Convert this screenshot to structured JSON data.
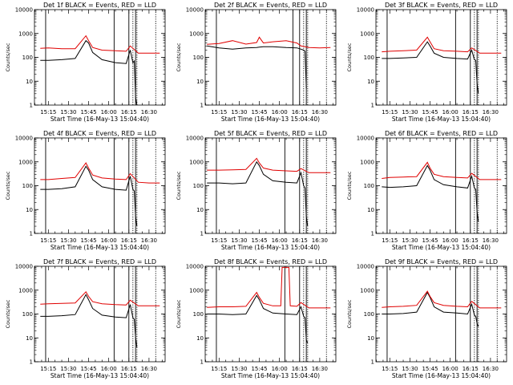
{
  "figure": {
    "colors": {
      "events": "#000000",
      "lld": "#e00000",
      "axis": "#000000",
      "marker": "#000000"
    }
  },
  "chart_data": [
    {
      "type": "line",
      "title": "Det 1f BLACK = Events, RED = LLD",
      "xlabel": "Start Time (16-May-13 15:04:40)",
      "ylabel": "Counts/sec",
      "yscale": "log",
      "ylim": [
        1,
        10000
      ],
      "yticks": [
        "1",
        "10",
        "100",
        "1000",
        "10000"
      ],
      "xticks": [
        "15:15",
        "15:30",
        "15:45",
        "16:00",
        "16:15",
        "16:30"
      ],
      "xlim": [
        "15:04:40",
        "16:42:00"
      ],
      "grid": false,
      "series": [
        {
          "name": "Events",
          "x": [
            "15:09",
            "15:15",
            "15:25",
            "15:35",
            "15:43",
            "15:45",
            "15:48",
            "15:55",
            "16:05",
            "16:13",
            "16:16",
            "16:18",
            "16:19",
            "16:20",
            "16:21"
          ],
          "values": [
            75,
            75,
            80,
            90,
            500,
            400,
            160,
            80,
            60,
            55,
            200,
            60,
            70,
            2,
            1
          ]
        },
        {
          "name": "LLD",
          "x": [
            "15:09",
            "15:15",
            "15:25",
            "15:35",
            "15:43",
            "15:45",
            "15:48",
            "15:55",
            "16:05",
            "16:13",
            "16:16",
            "16:22",
            "16:30",
            "16:38"
          ],
          "values": [
            240,
            250,
            230,
            230,
            800,
            500,
            260,
            200,
            190,
            180,
            300,
            150,
            150,
            150
          ]
        }
      ],
      "markers": {
        "solid": [
          "15:13",
          "16:04",
          "16:15",
          "16:20"
        ],
        "dotted": [
          "16:18",
          "16:21",
          "16:35"
        ]
      }
    },
    {
      "type": "line",
      "title": "Det 2f BLACK = Events, RED = LLD",
      "xlabel": "Start Time (16-May-13 15:04:40)",
      "ylabel": "Counts/sec",
      "yscale": "log",
      "ylim": [
        1,
        10000
      ],
      "yticks": [
        "1",
        "10",
        "100",
        "1000",
        "10000"
      ],
      "xticks": [
        "15:15",
        "15:30",
        "15:45",
        "16:00",
        "16:15",
        "16:30"
      ],
      "xlim": [
        "15:04:40",
        "16:42:00"
      ],
      "grid": false,
      "series": [
        {
          "name": "Events",
          "x": [
            "15:06",
            "15:15",
            "15:25",
            "15:35",
            "15:43",
            "15:45",
            "15:48",
            "15:55",
            "16:05",
            "16:13",
            "16:16",
            "16:18",
            "16:19",
            "16:20"
          ],
          "values": [
            300,
            250,
            220,
            250,
            260,
            270,
            280,
            280,
            260,
            250,
            220,
            200,
            180,
            5
          ]
        },
        {
          "name": "LLD",
          "x": [
            "15:06",
            "15:15",
            "15:25",
            "15:35",
            "15:43",
            "15:45",
            "15:48",
            "15:55",
            "16:05",
            "16:13",
            "16:16",
            "16:22",
            "16:30",
            "16:38"
          ],
          "values": [
            350,
            380,
            500,
            360,
            420,
            700,
            400,
            450,
            500,
            400,
            300,
            260,
            250,
            260
          ]
        }
      ],
      "markers": {
        "solid": [
          "15:13",
          "16:10",
          "16:15",
          "16:20"
        ],
        "dotted": [
          "16:18",
          "16:21",
          "16:35"
        ]
      }
    },
    {
      "type": "line",
      "title": "Det 3f BLACK = Events, RED = LLD",
      "xlabel": "Start Time (16-May-13 15:04:40)",
      "ylabel": "Counts/sec",
      "yscale": "log",
      "ylim": [
        1,
        10000
      ],
      "yticks": [
        "1",
        "10",
        "100",
        "1000",
        "10000"
      ],
      "xticks": [
        "15:15",
        "15:30",
        "15:45",
        "16:00",
        "16:15",
        "16:30"
      ],
      "xlim": [
        "15:04:40",
        "16:42:00"
      ],
      "grid": false,
      "series": [
        {
          "name": "Events",
          "x": [
            "15:09",
            "15:15",
            "15:25",
            "15:35",
            "15:43",
            "15:45",
            "15:48",
            "15:55",
            "16:05",
            "16:13",
            "16:16",
            "16:18",
            "16:19",
            "16:20",
            "16:21"
          ],
          "values": [
            90,
            90,
            95,
            100,
            450,
            300,
            150,
            100,
            90,
            85,
            200,
            80,
            75,
            8,
            3
          ]
        },
        {
          "name": "LLD",
          "x": [
            "15:09",
            "15:15",
            "15:25",
            "15:35",
            "15:43",
            "15:45",
            "15:48",
            "15:55",
            "16:05",
            "16:13",
            "16:16",
            "16:22",
            "16:30",
            "16:38"
          ],
          "values": [
            170,
            180,
            190,
            200,
            700,
            450,
            230,
            190,
            180,
            170,
            250,
            150,
            150,
            150
          ]
        }
      ],
      "markers": {
        "solid": [
          "15:13",
          "16:04",
          "16:15",
          "16:20"
        ],
        "dotted": [
          "16:18",
          "16:21",
          "16:35"
        ]
      }
    },
    {
      "type": "line",
      "title": "Det 4f BLACK = Events, RED = LLD",
      "xlabel": "Start Time (16-May-13 15:04:40)",
      "ylabel": "Counts/sec",
      "yscale": "log",
      "ylim": [
        1,
        10000
      ],
      "yticks": [
        "1",
        "10",
        "100",
        "1000",
        "10000"
      ],
      "xticks": [
        "15:15",
        "15:30",
        "15:45",
        "16:00",
        "16:15",
        "16:30"
      ],
      "xlim": [
        "15:04:40",
        "16:42:00"
      ],
      "grid": false,
      "series": [
        {
          "name": "Events",
          "x": [
            "15:09",
            "15:15",
            "15:25",
            "15:35",
            "15:43",
            "15:45",
            "15:48",
            "15:55",
            "16:05",
            "16:13",
            "16:16",
            "16:18",
            "16:19",
            "16:20",
            "16:21"
          ],
          "values": [
            70,
            70,
            75,
            90,
            650,
            450,
            180,
            90,
            70,
            65,
            250,
            70,
            60,
            5,
            2
          ]
        },
        {
          "name": "LLD",
          "x": [
            "15:09",
            "15:15",
            "15:25",
            "15:35",
            "15:43",
            "15:45",
            "15:48",
            "15:55",
            "16:05",
            "16:13",
            "16:16",
            "16:22",
            "16:30",
            "16:38"
          ],
          "values": [
            180,
            180,
            200,
            220,
            900,
            550,
            280,
            210,
            190,
            180,
            320,
            140,
            130,
            130
          ]
        }
      ],
      "markers": {
        "solid": [
          "15:13",
          "16:04",
          "16:15",
          "16:20"
        ],
        "dotted": [
          "16:18",
          "16:21",
          "16:35"
        ]
      }
    },
    {
      "type": "line",
      "title": "Det 5f BLACK = Events, RED = LLD",
      "xlabel": "Start Time (16-May-13 15:04:40)",
      "ylabel": "Counts/sec",
      "yscale": "log",
      "ylim": [
        1,
        10000
      ],
      "yticks": [
        "1",
        "10",
        "100",
        "1000",
        "10000"
      ],
      "xticks": [
        "15:15",
        "15:30",
        "15:45",
        "16:00",
        "16:15",
        "16:30"
      ],
      "xlim": [
        "15:04:40",
        "16:42:00"
      ],
      "grid": false,
      "series": [
        {
          "name": "Events",
          "x": [
            "15:06",
            "15:15",
            "15:25",
            "15:35",
            "15:43",
            "15:45",
            "15:48",
            "15:55",
            "16:05",
            "16:13",
            "16:16",
            "16:18",
            "16:19",
            "16:20",
            "16:21"
          ],
          "values": [
            130,
            130,
            120,
            130,
            1000,
            700,
            300,
            160,
            140,
            130,
            350,
            100,
            80,
            5,
            2
          ]
        },
        {
          "name": "LLD",
          "x": [
            "15:06",
            "15:15",
            "15:25",
            "15:35",
            "15:43",
            "15:45",
            "15:48",
            "15:55",
            "16:05",
            "16:13",
            "16:16",
            "16:22",
            "16:30",
            "16:38"
          ],
          "values": [
            450,
            450,
            460,
            480,
            1400,
            900,
            550,
            450,
            420,
            400,
            520,
            350,
            350,
            350
          ]
        }
      ],
      "markers": {
        "solid": [
          "15:13",
          "16:04",
          "16:15",
          "16:20"
        ],
        "dotted": [
          "16:18",
          "16:21",
          "16:35"
        ]
      }
    },
    {
      "type": "line",
      "title": "Det 6f BLACK = Events, RED = LLD",
      "xlabel": "Start Time (16-May-13 15:04:40)",
      "ylabel": "Counts/sec",
      "yscale": "log",
      "ylim": [
        1,
        10000
      ],
      "yticks": [
        "1",
        "10",
        "100",
        "1000",
        "10000"
      ],
      "xticks": [
        "15:15",
        "15:30",
        "15:45",
        "16:00",
        "16:15",
        "16:30"
      ],
      "xlim": [
        "15:04:40",
        "16:42:00"
      ],
      "grid": false,
      "series": [
        {
          "name": "Events",
          "x": [
            "15:09",
            "15:15",
            "15:25",
            "15:35",
            "15:43",
            "15:45",
            "15:48",
            "15:55",
            "16:05",
            "16:13",
            "16:16",
            "16:18",
            "16:19",
            "16:20",
            "16:21"
          ],
          "values": [
            90,
            85,
            90,
            100,
            700,
            450,
            180,
            110,
            90,
            80,
            250,
            80,
            70,
            8,
            3
          ]
        },
        {
          "name": "LLD",
          "x": [
            "15:09",
            "15:15",
            "15:25",
            "15:35",
            "15:43",
            "15:45",
            "15:48",
            "15:55",
            "16:05",
            "16:13",
            "16:16",
            "16:22",
            "16:30",
            "16:38"
          ],
          "values": [
            200,
            220,
            230,
            240,
            950,
            550,
            300,
            240,
            220,
            210,
            330,
            180,
            180,
            180
          ]
        }
      ],
      "markers": {
        "solid": [
          "15:13",
          "16:04",
          "16:15",
          "16:20"
        ],
        "dotted": [
          "16:18",
          "16:21",
          "16:35"
        ]
      }
    },
    {
      "type": "line",
      "title": "Det 7f BLACK = Events, RED = LLD",
      "xlabel": "Start Time (16-May-13 15:04:40)",
      "ylabel": "Counts/sec",
      "yscale": "log",
      "ylim": [
        1,
        10000
      ],
      "yticks": [
        "1",
        "10",
        "100",
        "1000",
        "10000"
      ],
      "xticks": [
        "15:15",
        "15:30",
        "15:45",
        "16:00",
        "16:15",
        "16:30"
      ],
      "xlim": [
        "15:04:40",
        "16:42:00"
      ],
      "grid": false,
      "series": [
        {
          "name": "Events",
          "x": [
            "15:09",
            "15:15",
            "15:25",
            "15:35",
            "15:43",
            "15:45",
            "15:48",
            "15:55",
            "16:05",
            "16:13",
            "16:16",
            "16:18",
            "16:19",
            "16:20",
            "16:21"
          ],
          "values": [
            80,
            80,
            85,
            95,
            650,
            400,
            170,
            90,
            75,
            70,
            250,
            70,
            60,
            10,
            4
          ]
        },
        {
          "name": "LLD",
          "x": [
            "15:09",
            "15:15",
            "15:25",
            "15:35",
            "15:43",
            "15:45",
            "15:48",
            "15:55",
            "16:05",
            "16:13",
            "16:16",
            "16:22",
            "16:30",
            "16:38"
          ],
          "values": [
            260,
            270,
            280,
            290,
            850,
            550,
            330,
            270,
            250,
            240,
            380,
            220,
            220,
            220
          ]
        }
      ],
      "markers": {
        "solid": [
          "15:13",
          "16:04",
          "16:15",
          "16:20"
        ],
        "dotted": [
          "16:18",
          "16:21",
          "16:35"
        ]
      }
    },
    {
      "type": "line",
      "title": "Det 8f BLACK = Events, RED = LLD",
      "xlabel": "Start Time (16-May-13 15:04:40)",
      "ylabel": "Counts/sec",
      "yscale": "log",
      "ylim": [
        1,
        10000
      ],
      "yticks": [
        "1",
        "10",
        "100",
        "1000",
        "10000"
      ],
      "xticks": [
        "15:15",
        "15:30",
        "15:45",
        "16:00",
        "16:15",
        "16:30"
      ],
      "xlim": [
        "15:04:40",
        "16:42:00"
      ],
      "grid": false,
      "series": [
        {
          "name": "Events",
          "x": [
            "15:06",
            "15:15",
            "15:25",
            "15:35",
            "15:43",
            "15:45",
            "15:48",
            "15:55",
            "16:05",
            "16:13",
            "16:16",
            "16:18",
            "16:19",
            "16:20",
            "16:21"
          ],
          "values": [
            100,
            100,
            95,
            100,
            600,
            400,
            170,
            110,
            100,
            95,
            200,
            80,
            70,
            8,
            6
          ]
        },
        {
          "name": "LLD",
          "x": [
            "15:06",
            "15:15",
            "15:25",
            "15:35",
            "15:43",
            "15:45",
            "15:48",
            "15:55",
            "16:01",
            "16:02",
            "16:07",
            "16:08",
            "16:13",
            "16:16",
            "16:22",
            "16:30",
            "16:38"
          ],
          "values": [
            190,
            200,
            200,
            210,
            800,
            500,
            280,
            220,
            220,
            9000,
            9000,
            220,
            210,
            300,
            180,
            180,
            180
          ]
        }
      ],
      "markers": {
        "solid": [
          "15:13",
          "16:04",
          "16:15",
          "16:20"
        ],
        "dotted": [
          "16:18",
          "16:21",
          "16:35"
        ]
      }
    },
    {
      "type": "line",
      "title": "Det 9f BLACK = Events, RED = LLD",
      "xlabel": "Start Time (16-May-13 15:04:40)",
      "ylabel": "Counts/sec",
      "yscale": "log",
      "ylim": [
        1,
        10000
      ],
      "yticks": [
        "1",
        "10",
        "100",
        "1000",
        "10000"
      ],
      "xticks": [
        "15:15",
        "15:30",
        "15:45",
        "16:00",
        "16:15",
        "16:30"
      ],
      "xlim": [
        "15:04:40",
        "16:42:00"
      ],
      "grid": false,
      "series": [
        {
          "name": "Events",
          "x": [
            "15:09",
            "15:15",
            "15:25",
            "15:35",
            "15:43",
            "15:45",
            "15:48",
            "15:55",
            "16:05",
            "16:13",
            "16:16",
            "16:18",
            "16:19",
            "16:20",
            "16:21"
          ],
          "values": [
            100,
            100,
            105,
            120,
            800,
            500,
            200,
            120,
            110,
            100,
            260,
            90,
            80,
            40,
            30
          ]
        },
        {
          "name": "LLD",
          "x": [
            "15:09",
            "15:15",
            "15:25",
            "15:35",
            "15:43",
            "15:45",
            "15:48",
            "15:55",
            "16:05",
            "16:13",
            "16:16",
            "16:22",
            "16:30",
            "16:38"
          ],
          "values": [
            190,
            200,
            210,
            230,
            900,
            550,
            300,
            230,
            210,
            200,
            340,
            180,
            180,
            180
          ]
        }
      ],
      "markers": {
        "solid": [
          "15:13",
          "16:04",
          "16:15",
          "16:20"
        ],
        "dotted": [
          "16:18",
          "16:21",
          "16:35"
        ]
      }
    }
  ]
}
